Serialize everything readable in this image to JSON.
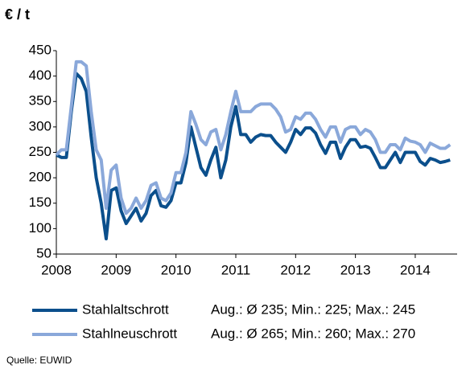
{
  "chart_data": {
    "type": "line",
    "y_label": "€ / t",
    "source": "Quelle: EUWID",
    "x": [
      2008,
      2008.083,
      2008.167,
      2008.25,
      2008.333,
      2008.417,
      2008.5,
      2008.583,
      2008.667,
      2008.75,
      2008.833,
      2008.917,
      2009,
      2009.083,
      2009.167,
      2009.25,
      2009.333,
      2009.417,
      2009.5,
      2009.583,
      2009.667,
      2009.75,
      2009.833,
      2009.917,
      2010,
      2010.083,
      2010.167,
      2010.25,
      2010.333,
      2010.417,
      2010.5,
      2010.583,
      2010.667,
      2010.75,
      2010.833,
      2010.917,
      2011,
      2011.083,
      2011.167,
      2011.25,
      2011.333,
      2011.417,
      2011.5,
      2011.583,
      2011.667,
      2011.75,
      2011.833,
      2011.917,
      2012,
      2012.083,
      2012.167,
      2012.25,
      2012.333,
      2012.417,
      2012.5,
      2012.583,
      2012.667,
      2012.75,
      2012.833,
      2012.917,
      2013,
      2013.083,
      2013.167,
      2013.25,
      2013.333,
      2013.417,
      2013.5,
      2013.583,
      2013.667,
      2013.75,
      2013.833,
      2013.917,
      2014,
      2014.083,
      2014.167,
      2014.25,
      2014.333,
      2014.417,
      2014.5,
      2014.583
    ],
    "series": [
      {
        "name": "Stahlaltschrott",
        "note": "Aug.: Ø 235; Min.: 225; Max.: 245",
        "color": "#0b4f8c",
        "values": [
          245,
          240,
          240,
          330,
          405,
          395,
          370,
          280,
          200,
          150,
          80,
          175,
          180,
          135,
          110,
          125,
          140,
          115,
          130,
          165,
          175,
          145,
          142,
          155,
          190,
          190,
          230,
          300,
          260,
          220,
          205,
          235,
          260,
          200,
          235,
          300,
          340,
          285,
          285,
          270,
          280,
          285,
          283,
          283,
          270,
          260,
          250,
          270,
          295,
          285,
          298,
          298,
          288,
          265,
          248,
          270,
          270,
          238,
          260,
          275,
          275,
          260,
          262,
          258,
          240,
          220,
          220,
          235,
          250,
          230,
          250,
          250,
          250,
          232,
          225,
          238,
          235,
          230,
          232,
          235
        ]
      },
      {
        "name": "Stahlneuschrott",
        "note": "Aug.: Ø 265; Min.: 260; Max.: 270",
        "color": "#8aa8da",
        "values": [
          245,
          255,
          255,
          340,
          428,
          428,
          420,
          330,
          255,
          235,
          140,
          215,
          225,
          160,
          130,
          140,
          160,
          140,
          155,
          185,
          190,
          160,
          155,
          170,
          210,
          210,
          250,
          330,
          305,
          275,
          265,
          290,
          295,
          255,
          285,
          330,
          370,
          330,
          330,
          330,
          340,
          345,
          345,
          345,
          335,
          320,
          290,
          295,
          320,
          315,
          327,
          327,
          315,
          295,
          280,
          300,
          300,
          270,
          295,
          300,
          300,
          285,
          295,
          290,
          275,
          250,
          250,
          265,
          265,
          255,
          278,
          272,
          270,
          265,
          250,
          268,
          263,
          258,
          258,
          265
        ]
      }
    ],
    "xlim": [
      2008,
      2014.7
    ],
    "xticks": [
      2008,
      2009,
      2010,
      2011,
      2012,
      2013,
      2014
    ],
    "ylim": [
      50,
      450
    ],
    "yticks": [
      50,
      100,
      150,
      200,
      250,
      300,
      350,
      400,
      450
    ]
  }
}
